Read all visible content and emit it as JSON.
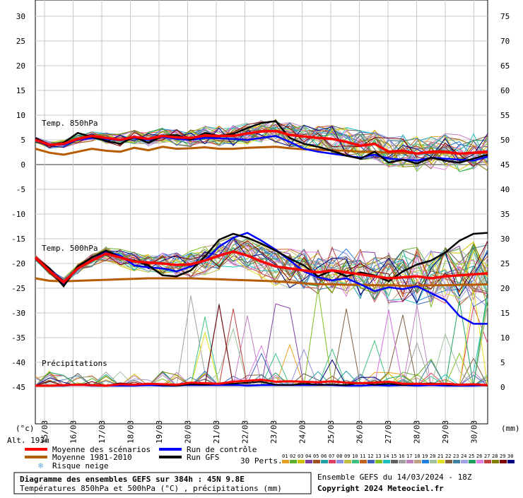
{
  "chart_data": {
    "type": "line",
    "title": "Diagramme des ensembles GEFS sur 384h : 45N 9.8E",
    "subtitle": "Températures 850hPa et 500hPa (°C) , précipitations (mm)",
    "run_label": "Ensemble GEFS du 14/03/2024 - 18Z",
    "copyright": "Copyright 2024 Meteociel.fr",
    "altitude": "Alt. 193m",
    "left_unit": "(°c)",
    "right_unit": "(mm)",
    "left_ticks": [
      30,
      25,
      20,
      15,
      10,
      5,
      0,
      -5,
      -10,
      -15,
      -20,
      -25,
      -30,
      -35,
      -40,
      -45
    ],
    "right_ticks": [
      75,
      70,
      65,
      60,
      55,
      50,
      45,
      40,
      35,
      30,
      25,
      20,
      15,
      10,
      5,
      0
    ],
    "ylim": [
      -45,
      30
    ],
    "x_labels": [
      "15/03",
      "16/03",
      "17/03",
      "18/03",
      "19/03",
      "20/03",
      "21/03",
      "22/03",
      "23/03",
      "24/03",
      "25/03",
      "26/03",
      "27/03",
      "28/03",
      "29/03",
      "30/03"
    ],
    "sections": {
      "t850": "Temp. 850hPa",
      "t500": "Temp. 500hPa",
      "precip": "Précipitations"
    },
    "legend": {
      "mean": "Moyenne des scénarios",
      "clim": "Moyenne 1981-2010",
      "snow": "Risque neige",
      "control": "Run de contrôle",
      "gfs": "Run GFS",
      "perts": "30 Perts."
    },
    "pert_labels": [
      "01",
      "02",
      "03",
      "04",
      "05",
      "06",
      "07",
      "08",
      "09",
      "10",
      "11",
      "12",
      "13",
      "14",
      "15",
      "16",
      "17",
      "18",
      "19",
      "20",
      "21",
      "22",
      "23",
      "24",
      "25",
      "26",
      "27",
      "28",
      "29",
      "30"
    ],
    "pert_colors": [
      "#e8a020",
      "#60b030",
      "#d0c000",
      "#8040a0",
      "#a05020",
      "#20a0a0",
      "#e04060",
      "#9090e0",
      "#c0c040",
      "#40c080",
      "#c06020",
      "#4060c0",
      "#80c020",
      "#20c0c0",
      "#606060",
      "#a0a0a0",
      "#c080c0",
      "#c0a080",
      "#2080e0",
      "#a0c0a0",
      "#e0e020",
      "#806040",
      "#4080a0",
      "#a0a0e0",
      "#20a060",
      "#e080e0",
      "#c04040",
      "#808000",
      "#800000",
      "#000080"
    ],
    "colors": {
      "mean": "#ff0000",
      "clim": "#b85c00",
      "control": "#0000ff",
      "gfs": "#000000",
      "snow": "#6aa8e0"
    },
    "series_t850": {
      "mean": [
        5.0,
        4.0,
        4.2,
        5.2,
        5.8,
        5.4,
        5.0,
        5.6,
        5.2,
        5.8,
        5.5,
        5.4,
        5.9,
        5.8,
        5.8,
        6.3,
        6.7,
        6.8,
        6.0,
        5.7,
        5.4,
        5.2,
        4.6,
        3.8,
        4.2,
        2.6,
        2.8,
        2.2,
        2.6,
        2.6,
        2.2,
        2.4,
        2.6
      ],
      "clim": [
        3.2,
        2.4,
        2.0,
        2.6,
        3.2,
        2.8,
        2.6,
        3.4,
        2.9,
        3.6,
        3.2,
        3.3,
        3.5,
        3.2,
        3.2,
        3.4,
        3.5,
        3.6,
        3.3,
        3.1,
        3.0,
        2.9,
        2.8,
        2.6,
        2.6,
        2.4,
        2.4,
        2.3,
        2.4,
        2.4,
        2.2,
        2.3,
        2.4
      ],
      "control": [
        5.2,
        4.1,
        4.0,
        5.0,
        5.4,
        5.2,
        4.9,
        5.4,
        5.0,
        5.6,
        5.2,
        5.0,
        5.4,
        5.3,
        5.2,
        5.0,
        5.4,
        5.8,
        4.6,
        3.2,
        2.6,
        2.2,
        1.8,
        1.4,
        2.0,
        1.2,
        1.0,
        0.8,
        1.4,
        1.2,
        1.0,
        0.8,
        1.6
      ],
      "gfs": [
        5.4,
        4.0,
        4.4,
        6.4,
        5.6,
        4.8,
        4.2,
        5.6,
        4.4,
        5.8,
        6.0,
        5.0,
        6.4,
        5.8,
        6.2,
        7.4,
        8.4,
        8.8,
        5.4,
        4.2,
        3.6,
        2.8,
        1.8,
        1.2,
        2.6,
        0.4,
        1.0,
        0.2,
        1.4,
        0.8,
        0.4,
        1.2,
        2.0
      ]
    },
    "series_t500": {
      "mean": [
        -18.8,
        -21.5,
        -23.8,
        -21.0,
        -19.4,
        -18.0,
        -18.8,
        -19.6,
        -19.8,
        -20.0,
        -20.3,
        -20.2,
        -19.4,
        -18.4,
        -17.6,
        -18.4,
        -19.6,
        -20.6,
        -21.0,
        -21.4,
        -21.8,
        -21.4,
        -21.8,
        -22.2,
        -22.6,
        -23.0,
        -22.8,
        -22.6,
        -23.0,
        -22.6,
        -22.4,
        -22.2,
        -22.0
      ],
      "clim": [
        -23.0,
        -23.5,
        -23.6,
        -23.5,
        -23.4,
        -23.3,
        -23.2,
        -23.1,
        -23.0,
        -23.0,
        -23.0,
        -23.0,
        -23.1,
        -23.2,
        -23.3,
        -23.4,
        -23.5,
        -23.6,
        -23.8,
        -24.0,
        -24.2,
        -24.2,
        -24.3,
        -24.3,
        -24.4,
        -24.4,
        -24.5,
        -24.5,
        -24.4,
        -24.4,
        -24.3,
        -24.3,
        -24.2
      ],
      "control": [
        -18.8,
        -21.4,
        -24.2,
        -20.8,
        -19.4,
        -17.6,
        -18.4,
        -20.4,
        -20.8,
        -21.0,
        -21.6,
        -20.6,
        -19.4,
        -16.6,
        -14.8,
        -13.8,
        -15.4,
        -17.2,
        -19.4,
        -21.6,
        -22.8,
        -23.4,
        -23.0,
        -24.2,
        -25.6,
        -24.8,
        -25.2,
        -24.6,
        -26.0,
        -27.4,
        -30.6,
        -32.2,
        -32.2
      ],
      "gfs": [
        -18.8,
        -21.0,
        -24.6,
        -20.6,
        -18.8,
        -17.4,
        -18.8,
        -19.4,
        -20.4,
        -22.4,
        -22.6,
        -21.4,
        -18.6,
        -15.2,
        -14.0,
        -14.8,
        -16.0,
        -17.4,
        -19.0,
        -20.4,
        -22.6,
        -21.4,
        -22.6,
        -21.8,
        -22.4,
        -23.6,
        -21.6,
        -20.2,
        -19.4,
        -17.8,
        -15.4,
        -14.0,
        -13.8
      ]
    },
    "series_precip": {
      "mean": [
        0.0,
        0.0,
        0.1,
        0.2,
        0.1,
        0.0,
        0.3,
        0.2,
        0.4,
        0.3,
        0.2,
        0.6,
        0.5,
        0.4,
        0.8,
        1.0,
        1.2,
        0.8,
        0.9,
        0.8,
        0.7,
        0.9,
        0.6,
        0.5,
        0.6,
        0.8,
        0.4,
        0.4,
        0.3,
        0.4,
        0.2,
        0.3,
        0.1
      ],
      "control": [
        0.0,
        0.0,
        0.0,
        0.2,
        0.0,
        0.0,
        0.0,
        0.0,
        0.1,
        0.0,
        0.0,
        0.2,
        0.1,
        0.2,
        0.2,
        0.0,
        0.1,
        0.2,
        0.1,
        0.2,
        0.2,
        0.1,
        0.0,
        0.0,
        0.1,
        0.0,
        0.1,
        0.0,
        0.1,
        0.0,
        0.0,
        0.0,
        0.1
      ],
      "gfs": [
        0.0,
        0.0,
        0.0,
        0.3,
        0.2,
        0.0,
        0.5,
        0.2,
        0.4,
        0.1,
        0.0,
        0.3,
        0.2,
        0.4,
        0.4,
        0.6,
        0.8,
        0.2,
        0.1,
        0.4,
        0.2,
        0.2,
        0.1,
        0.6,
        0.2,
        0.4,
        0.1,
        0.3,
        0.5,
        0.2,
        0.1,
        0.2,
        0.0
      ]
    }
  }
}
